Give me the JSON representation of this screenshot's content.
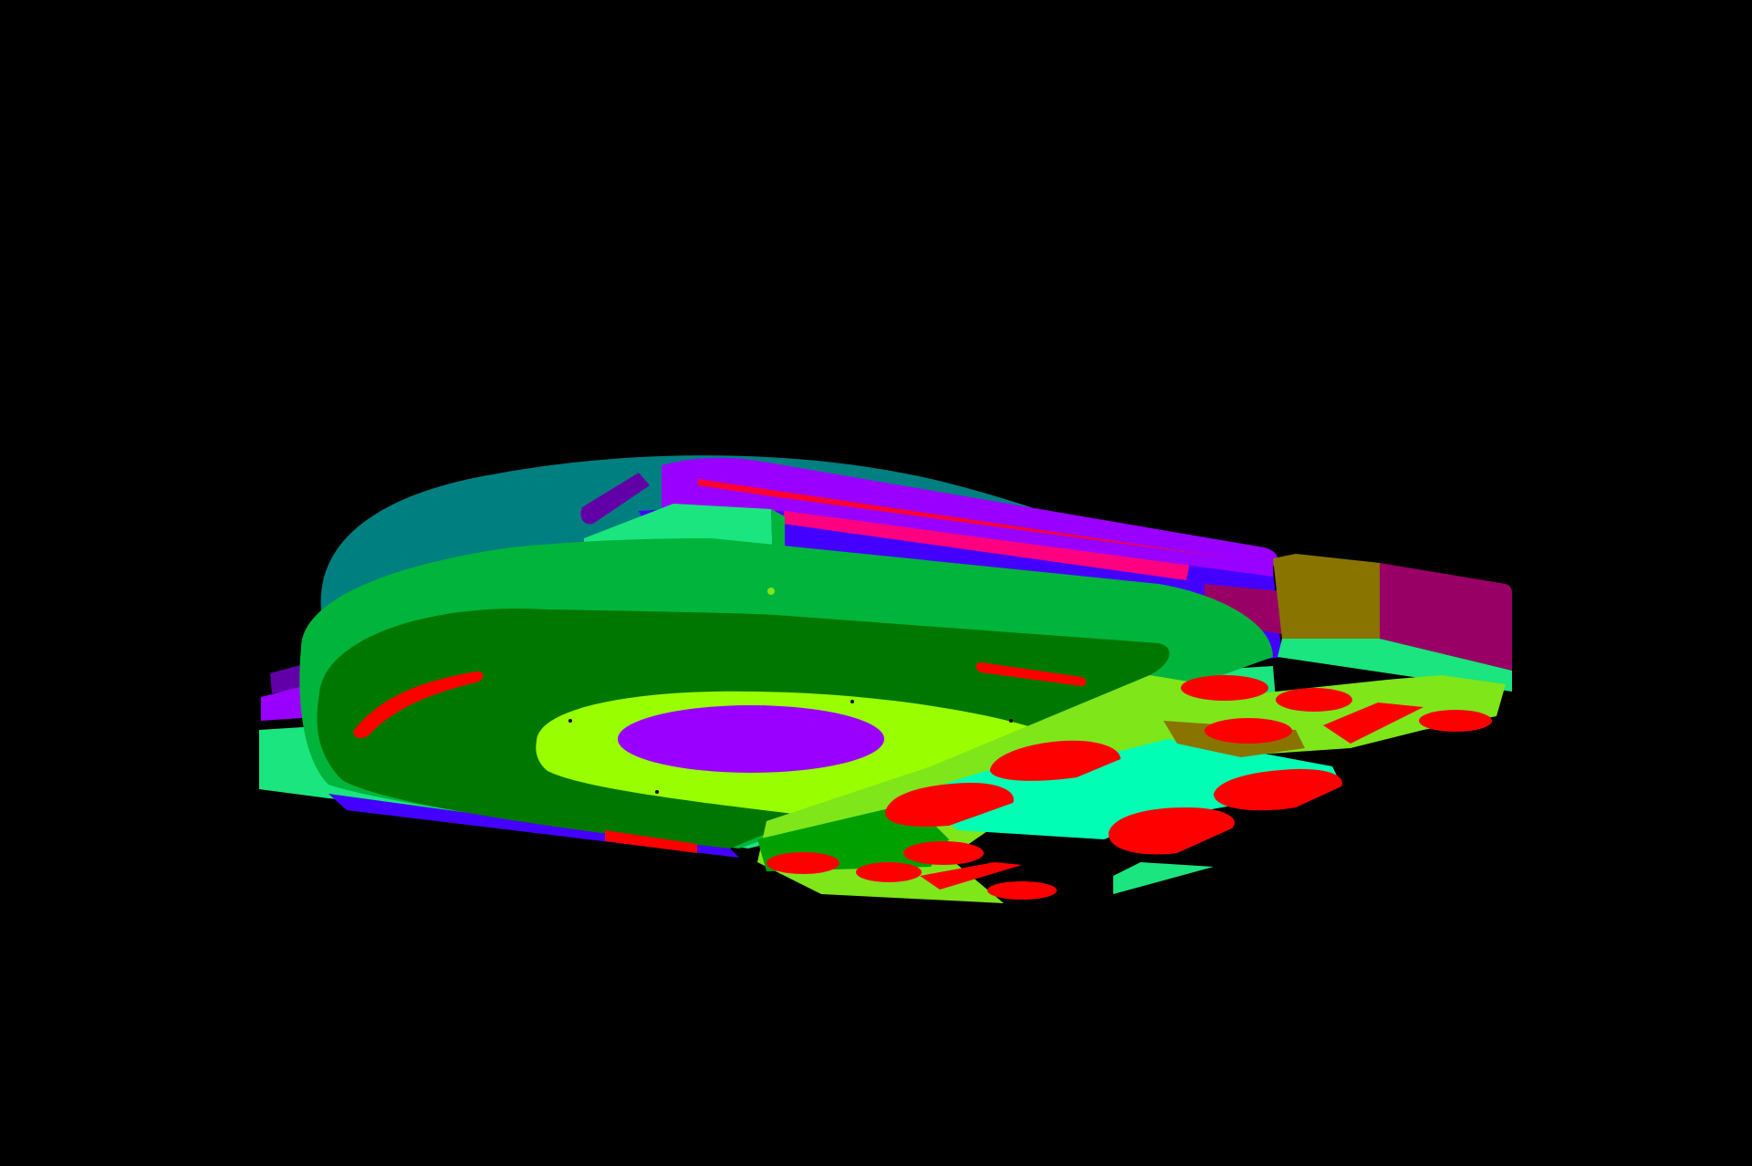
{
  "viewport": {
    "background": "#000000"
  },
  "model": {
    "part_colors": {
      "lid_back": "#007f80",
      "purple": "#9a00ff",
      "violet_dark": "#6200a8",
      "blue": "#4400ff",
      "pink": "#ff0080",
      "red": "#ff0000",
      "green_light": "#1ae57e",
      "green_mid": "#00b43c",
      "green_dark": "#007800",
      "lime": "#99ff00",
      "lime_soft": "#7ee619",
      "aqua": "#00ffb4",
      "green_block": "#00a000",
      "olive": "#8a7400",
      "magenta": "#990066",
      "hub": "#9900ff"
    }
  }
}
